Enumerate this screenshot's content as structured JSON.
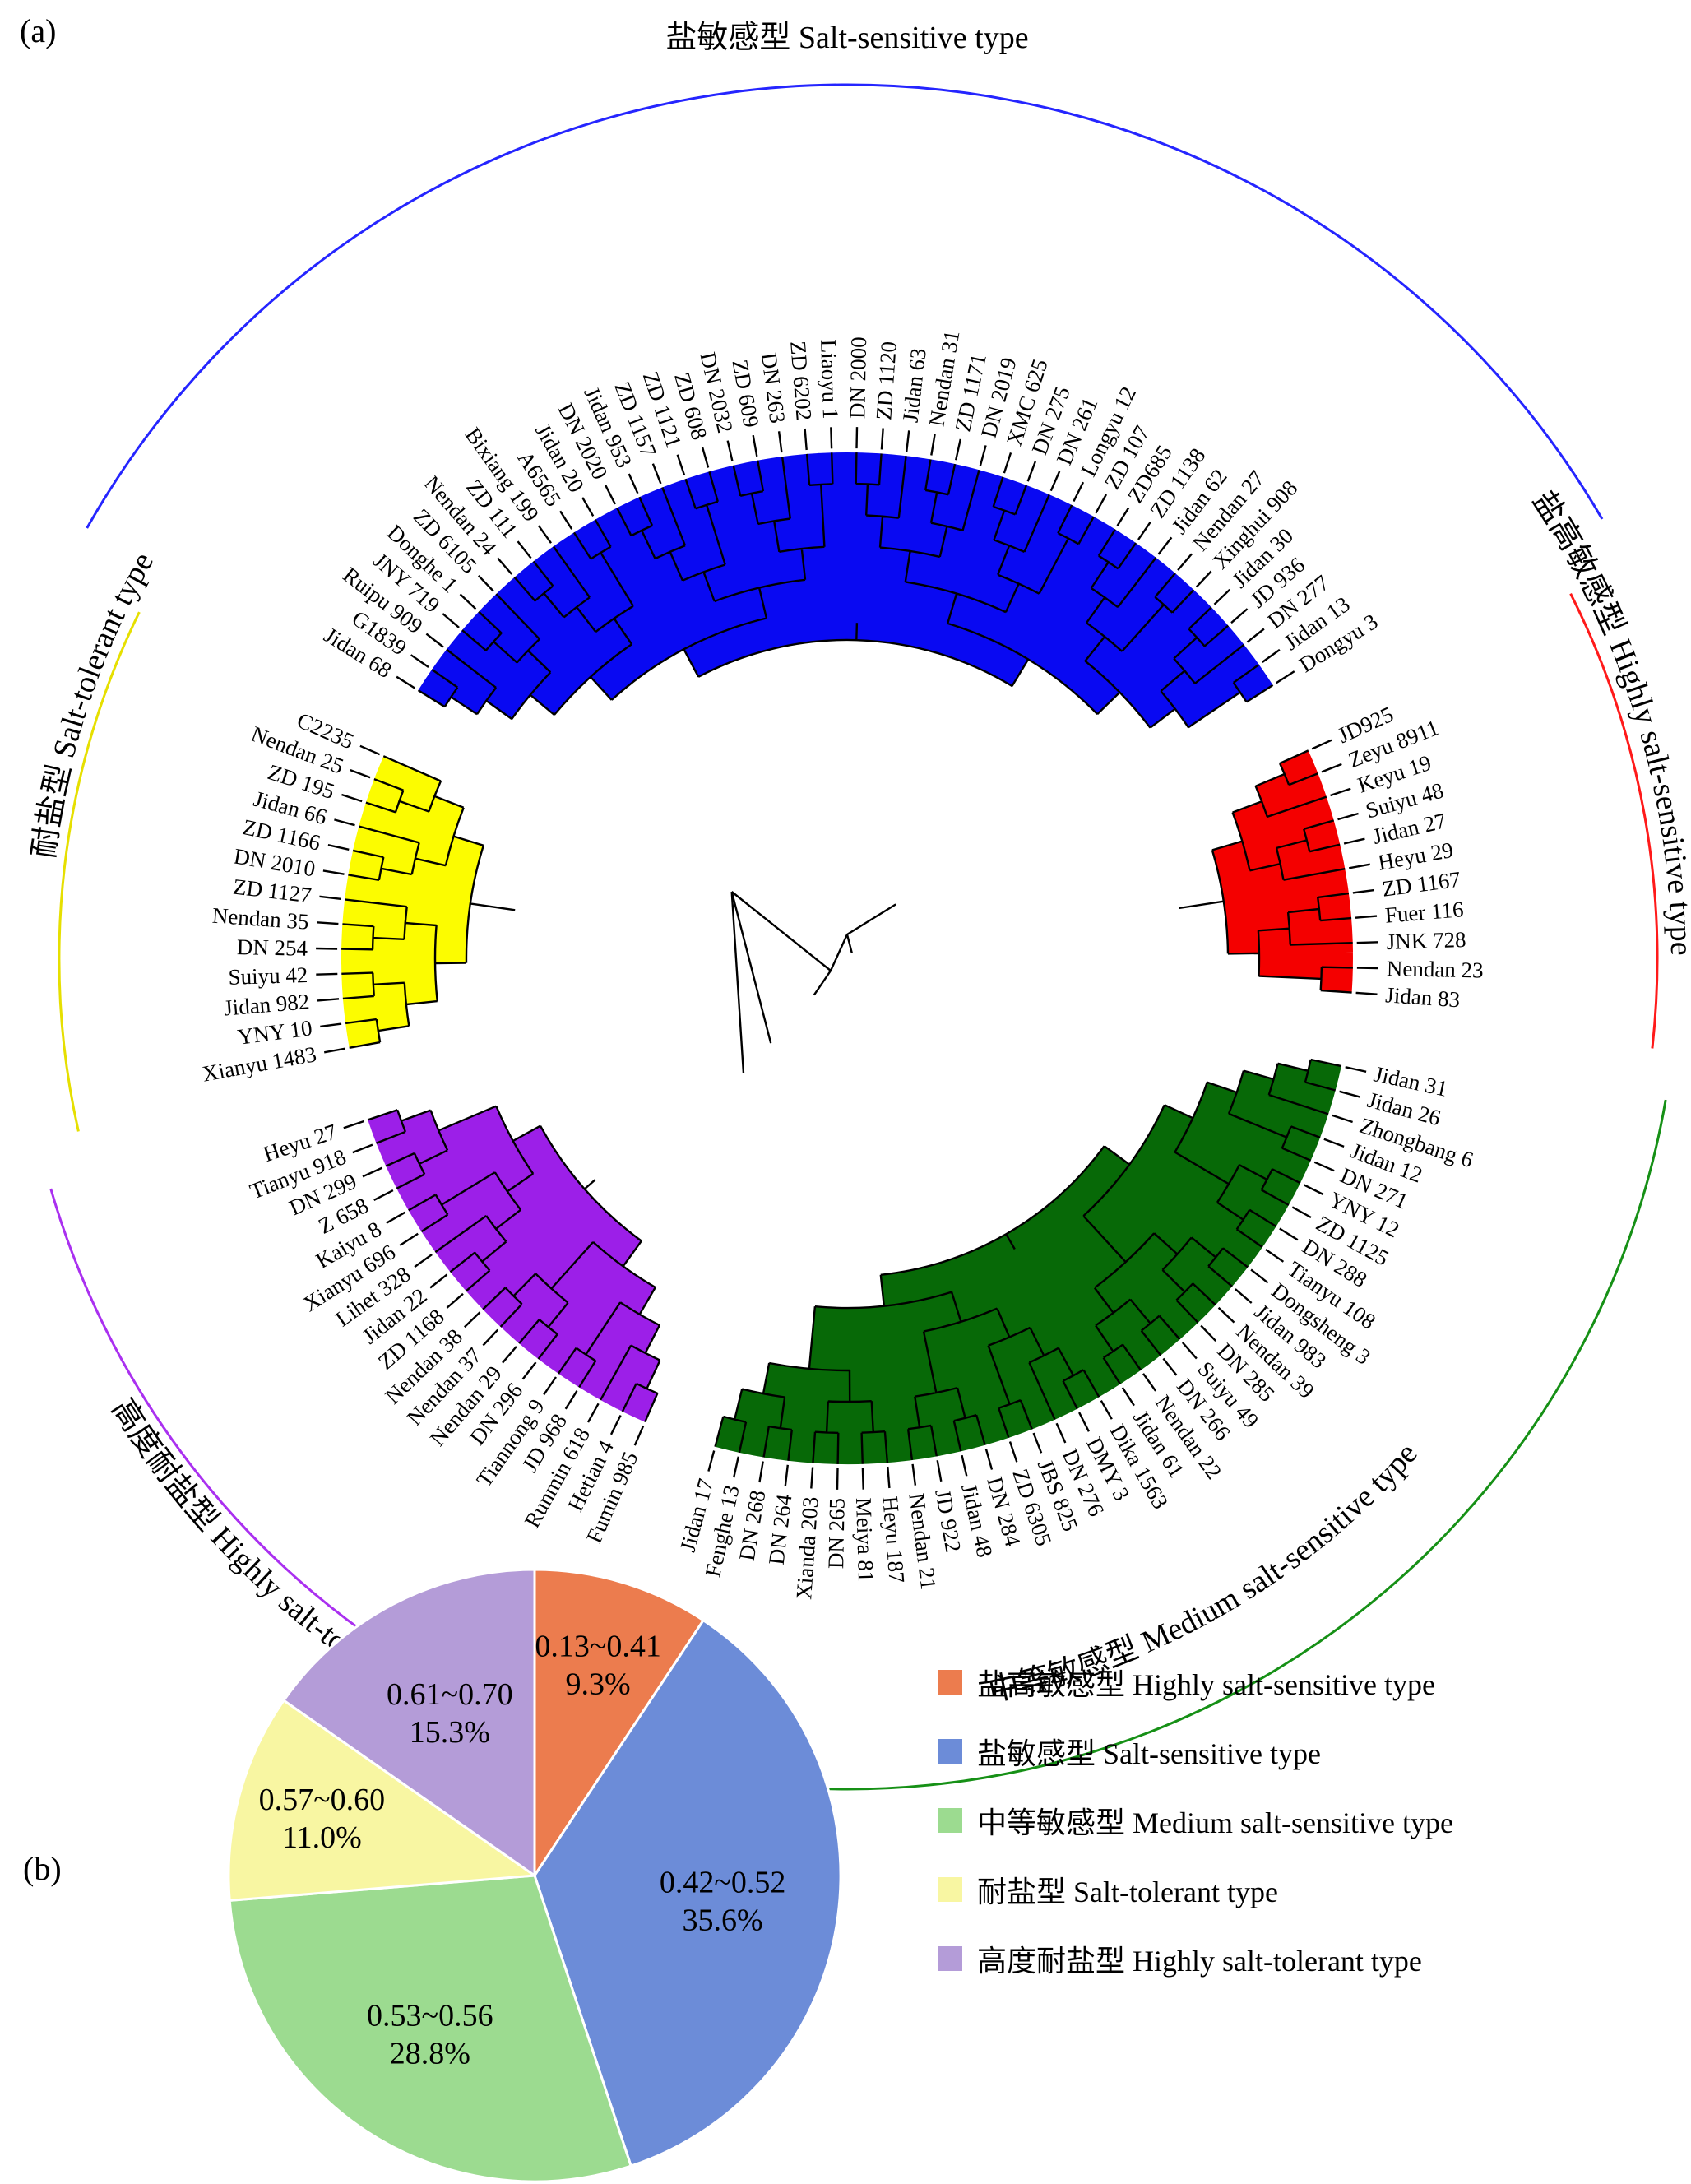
{
  "figure": {
    "panel_a_tag": "(a)",
    "panel_b_tag": "(b)"
  },
  "chart_data": [
    {
      "type": "circular-dendrogram",
      "description": "Cluster dendrogram of 118 maize varieties grouped into 5 salt-tolerance types",
      "total_varieties": 118,
      "groups": [
        {
          "id": "salt-sensitive",
          "label_zh": "盐敏感型",
          "label_en": "Salt-sensitive type",
          "count": 42,
          "wedge_color": "#0909f2",
          "arc_color": "#2525ff",
          "members": [
            "Jidan 68",
            "G1839",
            "Ruipu 909",
            "JNY 719",
            "Donghe 1",
            "ZD 6105",
            "Nendan 24",
            "ZD 111",
            "Bixiang 199",
            "A6565",
            "Jidan 20",
            "DN 2020",
            "Jidan 953",
            "ZD 1157",
            "ZD 1121",
            "ZD 608",
            "DN 2032",
            "ZD 609",
            "DN 263",
            "ZD 6202",
            "Liaoyu 1",
            "DN 2000",
            "ZD 1120",
            "Jidan 63",
            "Nendan 31",
            "ZD 1171",
            "DN 2019",
            "XMC 625",
            "DN 275",
            "DN 261",
            "Longyu 12",
            "ZD 107",
            "ZD685",
            "ZD 1138",
            "Jidan 62",
            "Nendan 27",
            "Xinghui 908",
            "Jidan 30",
            "JD 936",
            "DN 277",
            "Jidan 13",
            "Dongyu 3"
          ]
        },
        {
          "id": "highly-salt-sensitive",
          "label_zh": "盐高敏感型",
          "label_en": "Highly salt-sensitive type",
          "count": 11,
          "wedge_color": "#f40000",
          "arc_color": "#ff1a1a",
          "members": [
            "JD925",
            "Zeyu 8911",
            "Keyu 19",
            "Suiyu 48",
            "Jidan 27",
            "Heyu 29",
            "ZD 1167",
            "Fuer 116",
            "JNK 728",
            "Nendan 23",
            "Jidan 83"
          ]
        },
        {
          "id": "medium-salt-sensitive",
          "label_zh": "中等敏感型",
          "label_en": "Medium salt-sensitive type",
          "count": 34,
          "wedge_color": "#076907",
          "arc_color": "#169016",
          "members": [
            "Jidan 31",
            "Jidan 26",
            "Zhongbang 6",
            "Jidan 12",
            "DN 271",
            "YNY 12",
            "ZD 1125",
            "DN 288",
            "Tianyu 108",
            "Dongsheng 3",
            "Jidan 983",
            "Nendan 39",
            "DN 285",
            "Suiyu 49",
            "DN 266",
            "Nendan 22",
            "Jidan 61",
            "Dika 1563",
            "DMY 3",
            "DN 276",
            "JBS 825",
            "ZD 6305",
            "DN 284",
            "Jidan 48",
            "JD 922",
            "Nendan 21",
            "Heyu 187",
            "Meiya 81",
            "DN 265",
            "Xianda 203",
            "DN 264",
            "DN 268",
            "Fenghe 13",
            "Jidan 17"
          ]
        },
        {
          "id": "highly-salt-tolerant",
          "label_zh": "高度耐盐型",
          "label_en": "Highly salt-tolerant type",
          "count": 18,
          "wedge_color": "#9c1fe8",
          "arc_color": "#aa30f0",
          "members": [
            "Fumin 985",
            "Hetian 4",
            "Runmin 618",
            "JD 968",
            "Tiannong 9",
            "DN 296",
            "Nendan 29",
            "Nendan 37",
            "Nendan 38",
            "ZD 1168",
            "Jidan 22",
            "Lihet 328",
            "Xianyu 696",
            "Kaiyu 8",
            "Z 658",
            "DN 299",
            "Tianyu 918",
            "Heyu 27"
          ]
        },
        {
          "id": "salt-tolerant",
          "label_zh": "耐盐型",
          "label_en": "Salt-tolerant type",
          "count": 13,
          "wedge_color": "#fcfc00",
          "arc_color": "#e6df00",
          "members": [
            "Xianyu 1483",
            "YNY 10",
            "Jidan 982",
            "Suiyu 42",
            "DN 254",
            "Nendan 35",
            "ZD 1127",
            "DN 2010",
            "ZD 1166",
            "Jidan 66",
            "ZD 195",
            "Nendan 25",
            "C2235"
          ]
        }
      ]
    },
    {
      "type": "pie",
      "direction": "clockwise",
      "start_angle_deg": 0,
      "slices": [
        {
          "range": "0.13~0.41",
          "pct": "9.3%",
          "value": 9.3,
          "color": "#ec7c4e",
          "legend_label": "盐高敏感型 Highly salt-sensitive type"
        },
        {
          "range": "0.42~0.52",
          "pct": "35.6%",
          "value": 35.6,
          "color": "#6c8cd8",
          "legend_label": "盐敏感型 Salt-sensitive type"
        },
        {
          "range": "0.53~0.56",
          "pct": "28.8%",
          "value": 28.8,
          "color": "#9cdb90",
          "legend_label": "中等敏感型 Medium salt-sensitive type"
        },
        {
          "range": "0.57~0.60",
          "pct": "11.0%",
          "value": 11.0,
          "color": "#f8f6a2",
          "legend_label": "耐盐型 Salt-tolerant type"
        },
        {
          "range": "0.61~0.70",
          "pct": "15.3%",
          "value": 15.3,
          "color": "#b49cd8",
          "legend_label": "高度耐盐型 Highly salt-tolerant type"
        }
      ]
    }
  ]
}
